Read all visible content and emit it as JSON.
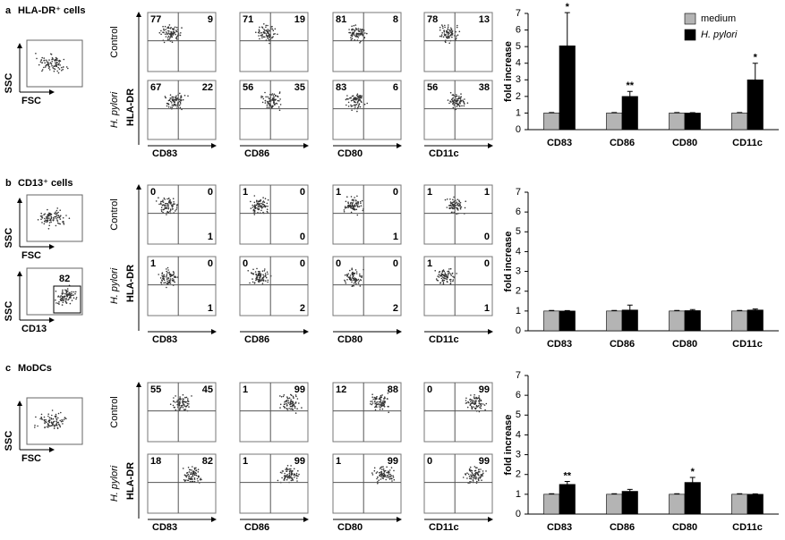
{
  "panels": [
    {
      "letter": "a",
      "title": "HLA-DR⁺ cells",
      "gates": [
        {
          "y": "SSC",
          "x": "FSC"
        }
      ],
      "row_labels": [
        "Control",
        "H. pylori"
      ],
      "y_marker": "HLA-DR",
      "markers": [
        "CD83",
        "CD86",
        "CD80",
        "CD11c"
      ],
      "quadrants": [
        [
          {
            "ul": 77,
            "ur": 9
          },
          {
            "ul": 71,
            "ur": 19
          },
          {
            "ul": 81,
            "ur": 8
          },
          {
            "ul": 78,
            "ur": 13
          }
        ],
        [
          {
            "ul": 67,
            "ur": 22
          },
          {
            "ul": 56,
            "ur": 35
          },
          {
            "ul": 83,
            "ur": 6
          },
          {
            "ul": 56,
            "ur": 38
          }
        ]
      ]
    },
    {
      "letter": "b",
      "title": "CD13⁺ cells",
      "gates": [
        {
          "y": "SSC",
          "x": "FSC"
        },
        {
          "y": "SSC",
          "x": "CD13",
          "gate": 82
        }
      ],
      "row_labels": [
        "Control",
        "H. pylori"
      ],
      "y_marker": "HLA-DR",
      "markers": [
        "CD83",
        "CD86",
        "CD80",
        "CD11c"
      ],
      "quadrants": [
        [
          {
            "ul": 0,
            "ur": 0,
            "lr": 1
          },
          {
            "ul": 1,
            "ur": 0,
            "lr": 0
          },
          {
            "ul": 1,
            "ur": 0,
            "lr": 1
          },
          {
            "ul": 1,
            "ur": 1,
            "lr": 0
          }
        ],
        [
          {
            "ul": 1,
            "ur": 0,
            "lr": 1
          },
          {
            "ul": 0,
            "ur": 0,
            "lr": 2
          },
          {
            "ul": 0,
            "ur": 0,
            "lr": 2
          },
          {
            "ul": 1,
            "ur": 0,
            "lr": 1
          }
        ]
      ]
    },
    {
      "letter": "c",
      "title": "MoDCs",
      "gates": [
        {
          "y": "SSC",
          "x": "FSC"
        }
      ],
      "row_labels": [
        "Control",
        "H. pylori"
      ],
      "y_marker": "HLA-DR",
      "markers": [
        "CD83",
        "CD86",
        "CD80",
        "CD11c"
      ],
      "quadrants": [
        [
          {
            "ul": 55,
            "ur": 45
          },
          {
            "ul": 1,
            "ur": 99
          },
          {
            "ul": 12,
            "ur": 88
          },
          {
            "ul": 0,
            "ur": 99
          }
        ],
        [
          {
            "ul": 18,
            "ur": 82
          },
          {
            "ul": 1,
            "ur": 99
          },
          {
            "ul": 1,
            "ur": 99
          },
          {
            "ul": 0,
            "ur": 99
          }
        ]
      ]
    }
  ],
  "chart_data": [
    {
      "type": "bar",
      "y_label": "fold increase",
      "categories": [
        "CD83",
        "CD86",
        "CD80",
        "CD11c"
      ],
      "ylim": [
        0,
        7
      ],
      "yticks": [
        0,
        1,
        2,
        3,
        4,
        5,
        6,
        7
      ],
      "legend": "top-right",
      "series": [
        {
          "name": "medium",
          "color": "#b4b4b4",
          "values": [
            1,
            1,
            1,
            1
          ],
          "errors": [
            0.03,
            0.03,
            0.03,
            0.03
          ]
        },
        {
          "name": "H. pylori",
          "color": "#000000",
          "values": [
            5.05,
            2.0,
            1.0,
            3.0
          ],
          "errors": [
            2.0,
            0.3,
            0.02,
            1.0
          ],
          "significance": [
            "*",
            "**",
            null,
            "*"
          ]
        }
      ]
    },
    {
      "type": "bar",
      "y_label": "fold increase",
      "categories": [
        "CD83",
        "CD86",
        "CD80",
        "CD11c"
      ],
      "ylim": [
        0,
        7
      ],
      "yticks": [
        0,
        1,
        2,
        3,
        4,
        5,
        6,
        7
      ],
      "series": [
        {
          "color": "#b4b4b4",
          "values": [
            1,
            1,
            1,
            1
          ],
          "errors": [
            0.03,
            0.03,
            0.03,
            0.03
          ]
        },
        {
          "color": "#000000",
          "values": [
            1.0,
            1.05,
            1.02,
            1.05
          ],
          "errors": [
            0.02,
            0.25,
            0.05,
            0.05
          ]
        }
      ]
    },
    {
      "type": "bar",
      "y_label": "fold increase",
      "categories": [
        "CD83",
        "CD86",
        "CD80",
        "CD11c"
      ],
      "ylim": [
        0,
        7
      ],
      "yticks": [
        0,
        1,
        2,
        3,
        4,
        5,
        6,
        7
      ],
      "series": [
        {
          "color": "#b4b4b4",
          "values": [
            1,
            1,
            1,
            1
          ],
          "errors": [
            0.03,
            0.03,
            0.03,
            0.03
          ]
        },
        {
          "color": "#000000",
          "values": [
            1.5,
            1.15,
            1.6,
            1.0
          ],
          "errors": [
            0.15,
            0.1,
            0.25,
            0.02
          ],
          "significance": [
            "**",
            null,
            "*",
            null
          ]
        }
      ]
    }
  ]
}
